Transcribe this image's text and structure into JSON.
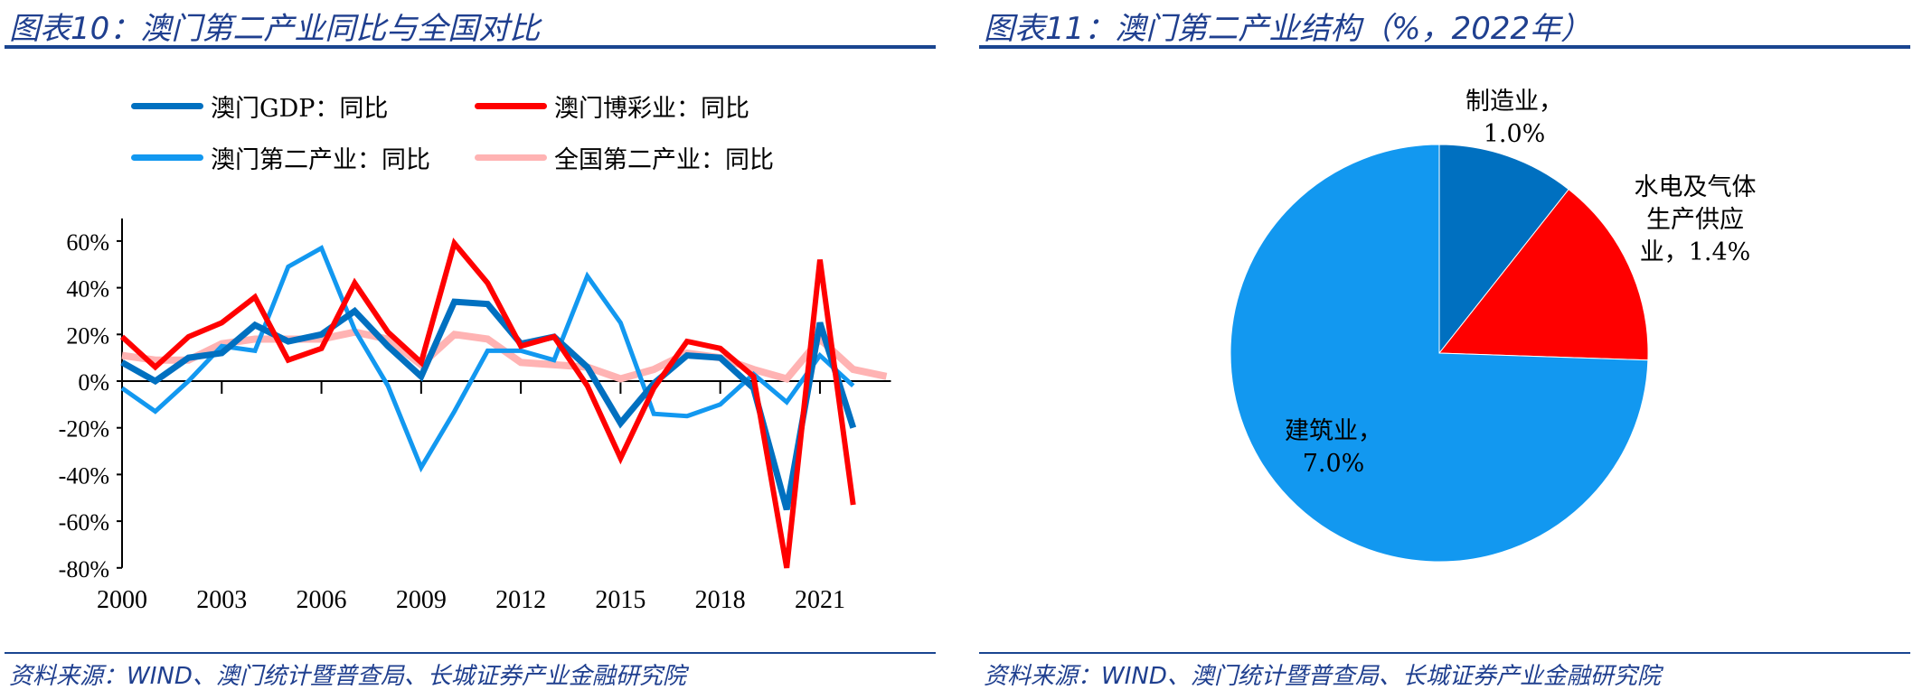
{
  "left": {
    "title": "图表10：澳门第二产业同比与全国对比",
    "source": "资料来源：WIND、澳门统计暨普查局、长城证券产业金融研究院"
  },
  "right": {
    "title": "图表11：澳门第二产业结构（%，2022年）",
    "source": "资料来源：WIND、澳门统计暨普查局、长城证券产业金融研究院"
  },
  "chart_data": [
    {
      "type": "line",
      "title": "",
      "ylim": [
        -80,
        60
      ],
      "yticks": [
        "60%",
        "40%",
        "20%",
        "0%",
        "-20%",
        "-40%",
        "-60%",
        "-80%"
      ],
      "xticks": [
        "2000",
        "2003",
        "2006",
        "2009",
        "2012",
        "2015",
        "2018",
        "2021"
      ],
      "legend": "top",
      "x": [
        2000,
        2001,
        2002,
        2003,
        2004,
        2005,
        2006,
        2007,
        2008,
        2009,
        2010,
        2011,
        2012,
        2013,
        2014,
        2015,
        2016,
        2017,
        2018,
        2019,
        2020,
        2021,
        2022,
        2023
      ],
      "series": [
        {
          "name": "澳门GDP：同比",
          "color": "#0070c0",
          "width": 7,
          "values": [
            8,
            0,
            10,
            12,
            24,
            17,
            20,
            30,
            15,
            2,
            34,
            33,
            16,
            19,
            6,
            -18,
            -1,
            11,
            10,
            -3,
            -55,
            25,
            -20,
            null
          ]
        },
        {
          "name": "澳门博彩业：同比",
          "color": "#ff0000",
          "width": 6,
          "values": [
            19,
            6,
            19,
            25,
            36,
            9,
            14,
            42,
            21,
            8,
            59,
            42,
            15,
            19,
            -2,
            -33,
            -3,
            17,
            14,
            2,
            -80,
            52,
            -53,
            null
          ]
        },
        {
          "name": "澳门第二产业：同比",
          "color": "#1298f0",
          "width": 5,
          "values": [
            -3,
            -13,
            0,
            15,
            13,
            49,
            57,
            22,
            -2,
            -37,
            -13,
            13,
            13,
            9,
            45,
            25,
            -14,
            -15,
            -10,
            3,
            -9,
            11,
            -2,
            null
          ]
        },
        {
          "name": "全国第二产业：同比",
          "color": "#ffb3b3",
          "width": 8,
          "values": [
            11,
            9,
            9,
            16,
            18,
            18,
            18,
            21,
            18,
            7,
            20,
            18,
            8,
            7,
            6,
            1,
            5,
            12,
            10,
            5,
            1,
            18,
            5,
            2
          ]
        }
      ]
    },
    {
      "type": "pie",
      "title": "",
      "slices": [
        {
          "label": "制造业，",
          "value": 1.0,
          "text": "1.0%",
          "color": "#0070c0"
        },
        {
          "label": "水电及气体生产供应业，",
          "value": 1.4,
          "text": "1.4%",
          "color": "#ff0000"
        },
        {
          "label": "建筑业，",
          "value": 7.0,
          "text": "7.0%",
          "color": "#1298f0"
        }
      ]
    }
  ]
}
